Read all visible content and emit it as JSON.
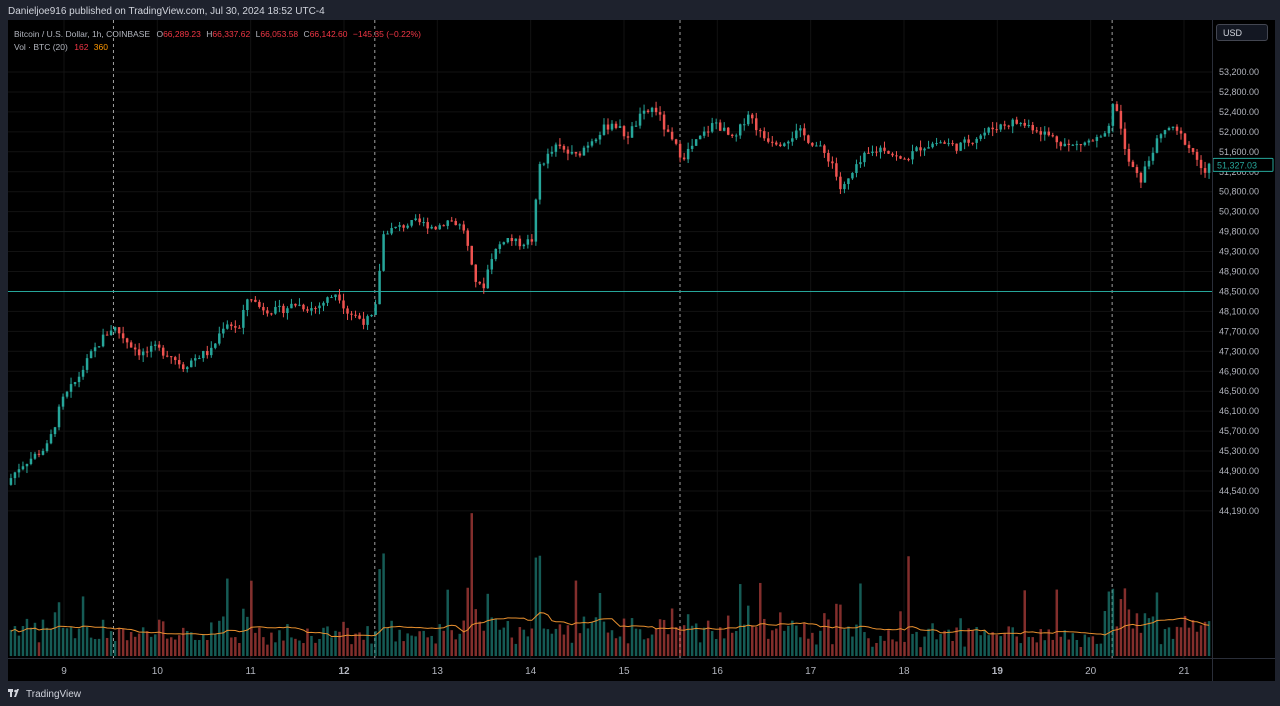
{
  "header": {
    "caption": "Danieljoe916 published on TradingView.com, Jul 30, 2024 18:52 UTC-4"
  },
  "legend": {
    "symbol": "Bitcoin / U.S. Dollar, 1h, COINBASE",
    "o_label": "O",
    "o_value": "66,289.23",
    "h_label": "H",
    "h_value": "66,337.62",
    "l_label": "L",
    "l_value": "66,053.58",
    "c_label": "C",
    "c_value": "66,142.60",
    "change": "−145.35 (−0.22%)",
    "vol_label": "Vol · BTC (20)",
    "vol_value1": "162",
    "vol_value2": "360"
  },
  "currency": "USD",
  "footer": {
    "brand": "TradingView"
  },
  "colors": {
    "up": "#26a69a",
    "down": "#ef5350",
    "vol_ma": "#e8902f",
    "hline": "#26a69a",
    "price_tag": "#26a69a"
  },
  "chart_data": {
    "type": "candlestick",
    "price_range": [
      44000,
      53600
    ],
    "y_ticks": [
      53200,
      52800,
      52400,
      52000,
      51600,
      51200,
      50800,
      50300,
      49800,
      49300,
      48900,
      48500,
      48100,
      47700,
      47300,
      46900,
      46500,
      46100,
      45700,
      45300,
      44900,
      44540,
      44190
    ],
    "y_tick_labels": [
      "53,200.00",
      "52,800.00",
      "52,400.00",
      "52,000.00",
      "51,600.00",
      "51,200.00",
      "50,800.00",
      "50,300.00",
      "49,800.00",
      "49,300.00",
      "48,900.00",
      "48,500.00",
      "48,100.00",
      "47,700.00",
      "47,300.00",
      "46,900.00",
      "46,500.00",
      "46,100.00",
      "45,700.00",
      "45,300.00",
      "44,900.00",
      "44,540.00",
      "44,190.00"
    ],
    "x_ticks": [
      {
        "label": "9",
        "day": 9
      },
      {
        "label": "10",
        "day": 10
      },
      {
        "label": "11",
        "day": 11
      },
      {
        "label": "12",
        "day": 12,
        "bold": true
      },
      {
        "label": "13",
        "day": 13
      },
      {
        "label": "14",
        "day": 14
      },
      {
        "label": "15",
        "day": 15
      },
      {
        "label": "16",
        "day": 16
      },
      {
        "label": "17",
        "day": 17
      },
      {
        "label": "18",
        "day": 18
      },
      {
        "label": "19",
        "day": 19,
        "bold": true
      },
      {
        "label": "20",
        "day": 20
      },
      {
        "label": "21",
        "day": 21
      }
    ],
    "day_range": [
      8.4,
      21.3
    ],
    "vertical_markers": [
      9.53,
      12.33,
      15.6,
      20.23
    ],
    "horizontal_line": 48500,
    "last_price_label": "51,327.03",
    "last_price": 51327,
    "volume_ma_period": 20,
    "price_path": [
      [
        8.4,
        44650
      ],
      [
        8.55,
        45000
      ],
      [
        8.7,
        45200
      ],
      [
        8.85,
        45400
      ],
      [
        9.0,
        46300
      ],
      [
        9.15,
        46700
      ],
      [
        9.3,
        47200
      ],
      [
        9.45,
        47600
      ],
      [
        9.55,
        47800
      ],
      [
        9.7,
        47500
      ],
      [
        9.85,
        47250
      ],
      [
        10.0,
        47350
      ],
      [
        10.15,
        47250
      ],
      [
        10.3,
        47000
      ],
      [
        10.45,
        47200
      ],
      [
        10.6,
        47300
      ],
      [
        10.75,
        47900
      ],
      [
        10.9,
        47750
      ],
      [
        11.0,
        48450
      ],
      [
        11.1,
        48200
      ],
      [
        11.3,
        48100
      ],
      [
        11.5,
        48250
      ],
      [
        11.7,
        48150
      ],
      [
        11.85,
        48350
      ],
      [
        11.95,
        48500
      ],
      [
        12.05,
        48100
      ],
      [
        12.25,
        47900
      ],
      [
        12.35,
        48000
      ],
      [
        12.45,
        49800
      ],
      [
        12.6,
        49900
      ],
      [
        12.8,
        50050
      ],
      [
        13.0,
        49900
      ],
      [
        13.15,
        50100
      ],
      [
        13.3,
        49900
      ],
      [
        13.4,
        48850
      ],
      [
        13.5,
        48500
      ],
      [
        13.6,
        49200
      ],
      [
        13.75,
        49650
      ],
      [
        13.9,
        49500
      ],
      [
        14.05,
        49600
      ],
      [
        14.1,
        51300
      ],
      [
        14.3,
        51700
      ],
      [
        14.5,
        51500
      ],
      [
        14.7,
        51900
      ],
      [
        14.9,
        52200
      ],
      [
        15.05,
        51900
      ],
      [
        15.2,
        52300
      ],
      [
        15.35,
        52500
      ],
      [
        15.5,
        51900
      ],
      [
        15.65,
        51500
      ],
      [
        15.8,
        51800
      ],
      [
        16.0,
        52200
      ],
      [
        16.2,
        51800
      ],
      [
        16.35,
        52400
      ],
      [
        16.5,
        51900
      ],
      [
        16.7,
        51800
      ],
      [
        16.9,
        52000
      ],
      [
        17.1,
        51700
      ],
      [
        17.25,
        51400
      ],
      [
        17.35,
        50800
      ],
      [
        17.45,
        51100
      ],
      [
        17.6,
        51500
      ],
      [
        17.8,
        51700
      ],
      [
        18.0,
        51400
      ],
      [
        18.2,
        51700
      ],
      [
        18.4,
        51800
      ],
      [
        18.6,
        51700
      ],
      [
        18.8,
        51900
      ],
      [
        19.0,
        52100
      ],
      [
        19.2,
        52200
      ],
      [
        19.4,
        52100
      ],
      [
        19.6,
        51900
      ],
      [
        19.8,
        51700
      ],
      [
        20.0,
        51800
      ],
      [
        20.2,
        51900
      ],
      [
        20.28,
        52700
      ],
      [
        20.4,
        51500
      ],
      [
        20.55,
        51000
      ],
      [
        20.7,
        51700
      ],
      [
        20.85,
        52100
      ],
      [
        21.0,
        51900
      ],
      [
        21.15,
        51500
      ],
      [
        21.25,
        51100
      ],
      [
        21.3,
        51327
      ]
    ],
    "volume_level": 360,
    "volume_scale_note": ""
  }
}
